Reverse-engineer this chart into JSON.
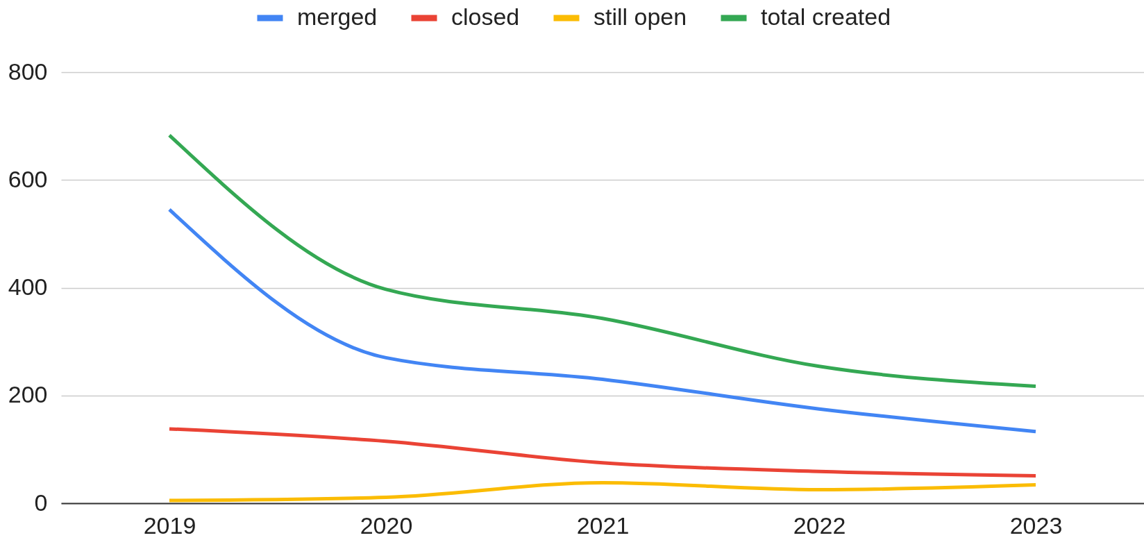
{
  "chart_data": {
    "type": "line",
    "categories": [
      "2019",
      "2020",
      "2021",
      "2022",
      "2023"
    ],
    "series": [
      {
        "name": "merged",
        "color": "#4285f4",
        "values": [
          545,
          270,
          230,
          175,
          133
        ]
      },
      {
        "name": "closed",
        "color": "#ea4335",
        "values": [
          138,
          115,
          75,
          59,
          51
        ]
      },
      {
        "name": "still open",
        "color": "#fbbc04",
        "values": [
          5,
          11,
          38,
          25,
          34
        ]
      },
      {
        "name": "total created",
        "color": "#34a853",
        "values": [
          683,
          397,
          343,
          254,
          217
        ]
      }
    ],
    "ylim": [
      0,
      800
    ],
    "yticks": [
      0,
      200,
      400,
      600,
      800
    ],
    "grid": "y",
    "legend": "top"
  }
}
